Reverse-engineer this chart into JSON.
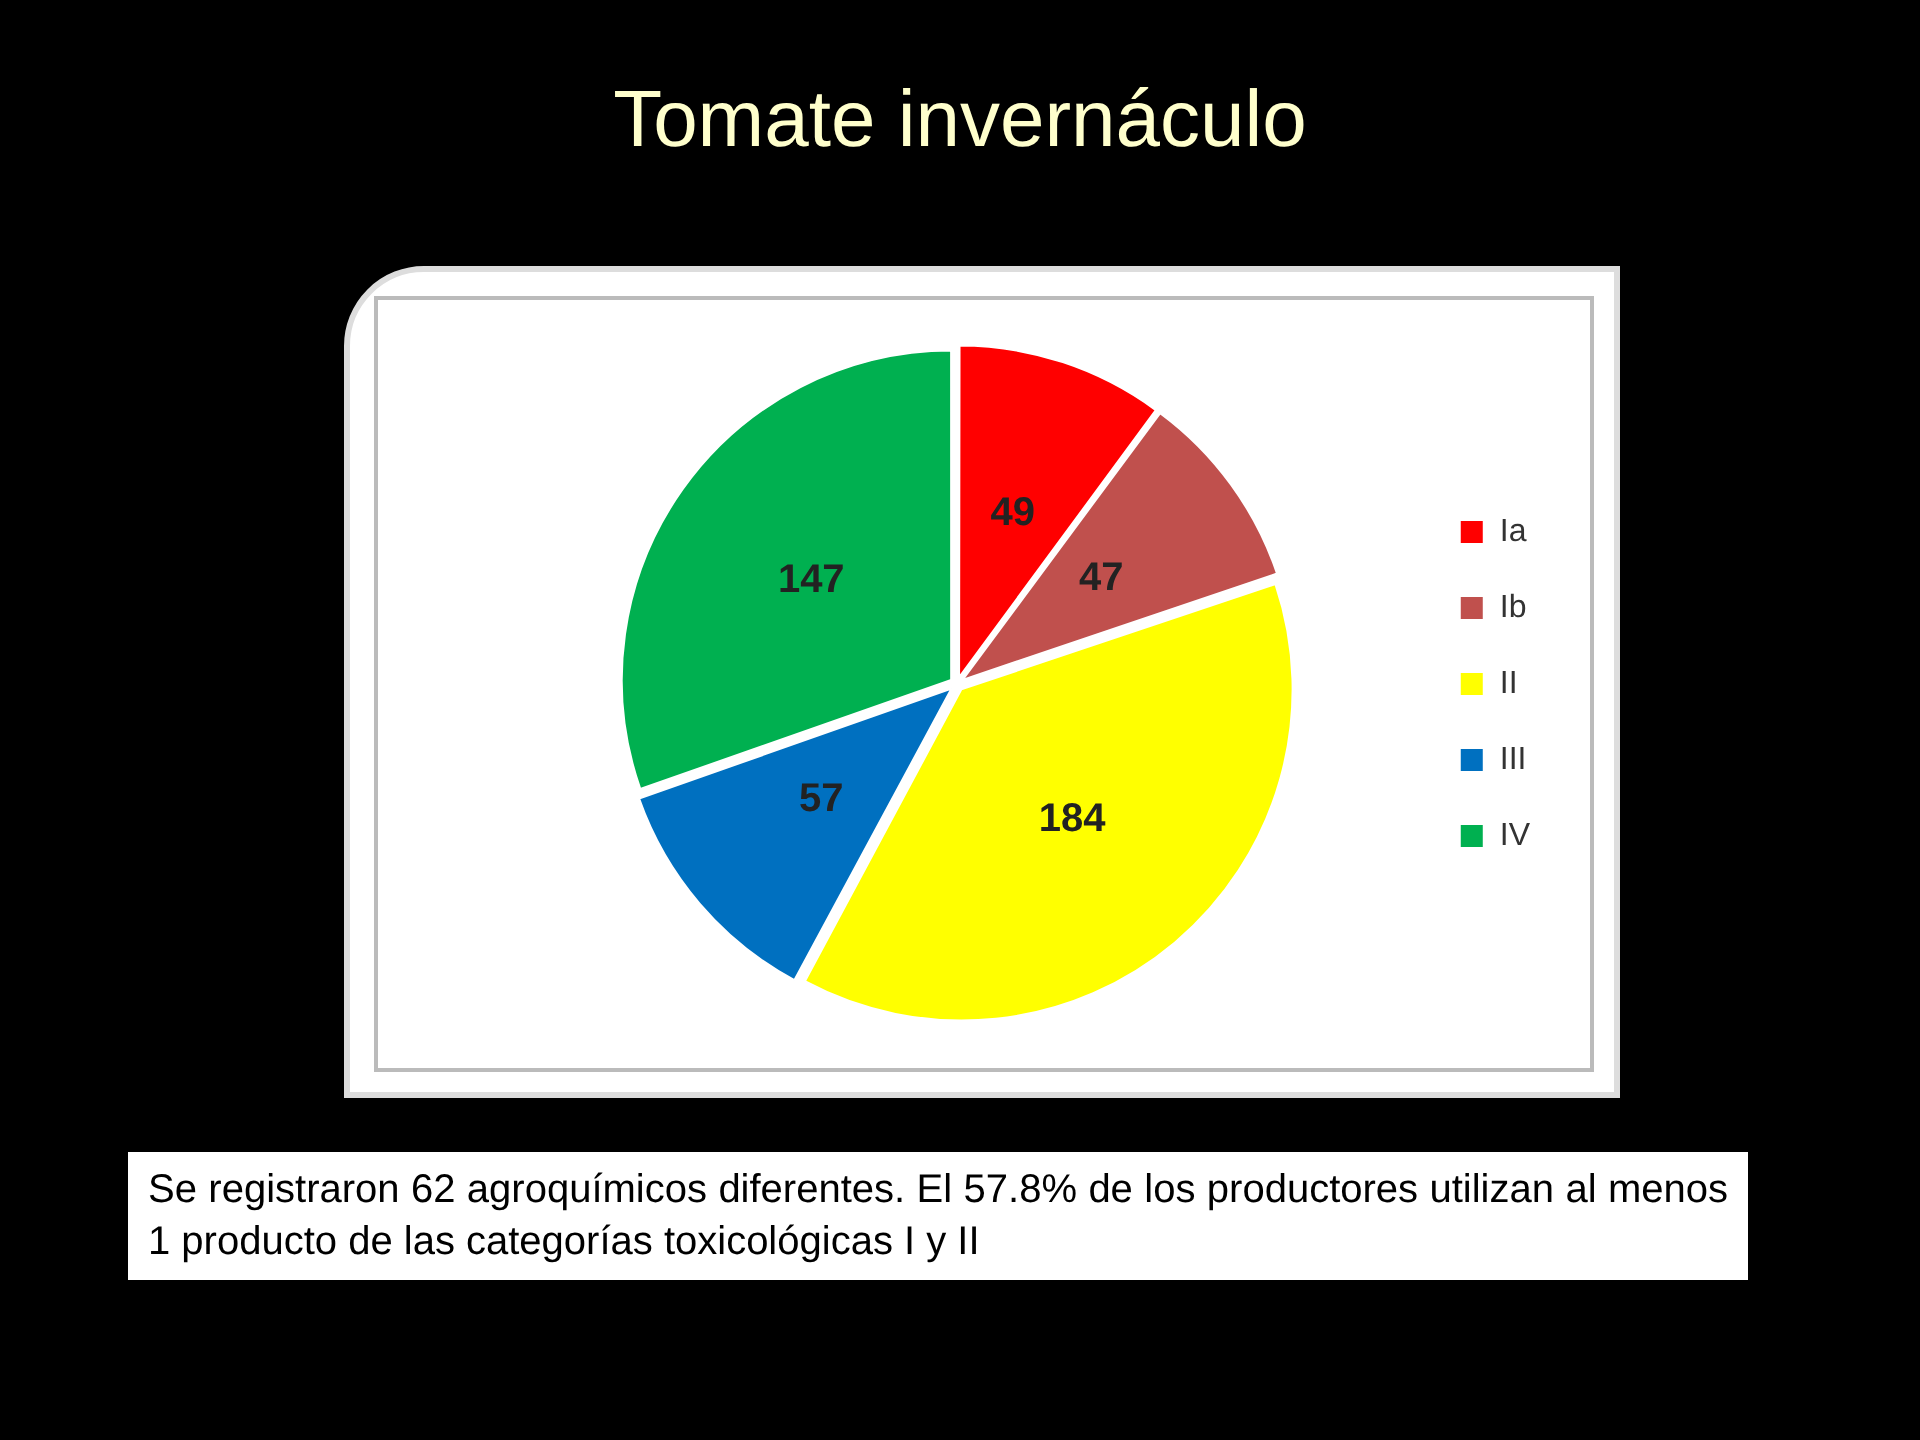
{
  "chart_data": {
    "type": "pie",
    "title": "Tomate invernáculo",
    "categories": [
      "Ia",
      "Ib",
      "II",
      "III",
      "IV"
    ],
    "values": [
      49,
      47,
      184,
      57,
      147
    ],
    "colors": [
      "#ff0000",
      "#c0504d",
      "#ffff00",
      "#0070c0",
      "#00b050"
    ],
    "data_labels": true,
    "legend": "right",
    "annotations": [
      "Se registraron 62 agroquímicos diferentes. El 57.8% de los productores utilizan al menos 1 producto de las categorías toxicológicas I y II"
    ]
  }
}
